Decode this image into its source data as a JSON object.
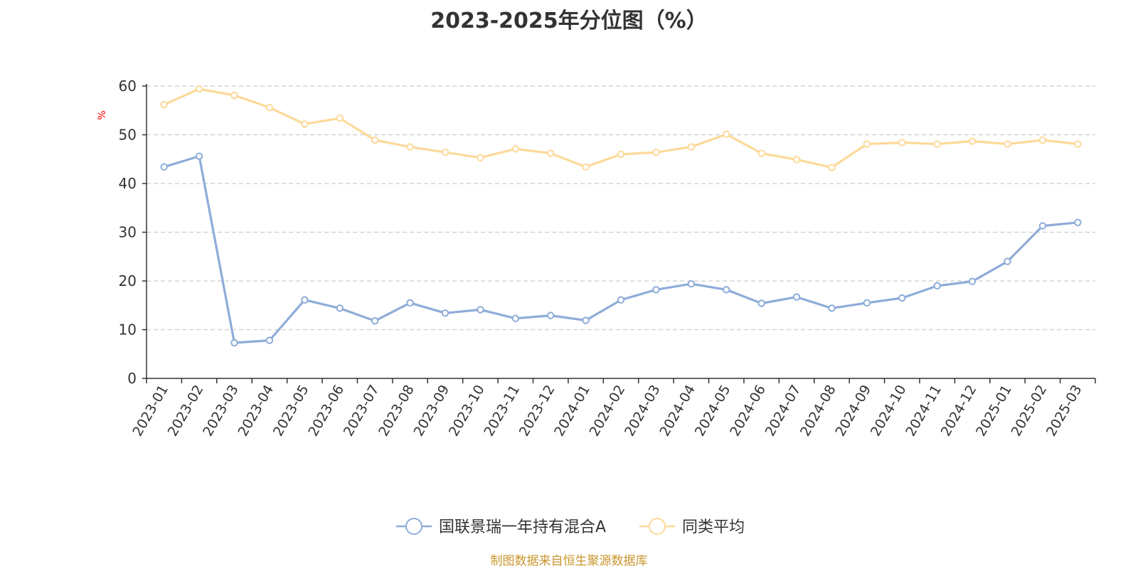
{
  "chart_data": {
    "type": "line",
    "title": "2023-2025年分位图（%）",
    "ylabel": "%",
    "ylim": [
      0,
      60
    ],
    "yticks": [
      0,
      10,
      20,
      30,
      40,
      50,
      60
    ],
    "grid": "horizontal dashed",
    "legend_position": "bottom",
    "categories": [
      "2023-01",
      "2023-02",
      "2023-03",
      "2023-04",
      "2023-05",
      "2023-06",
      "2023-07",
      "2023-08",
      "2023-09",
      "2023-10",
      "2023-11",
      "2023-12",
      "2024-01",
      "2024-02",
      "2024-03",
      "2024-04",
      "2024-05",
      "2024-06",
      "2024-07",
      "2024-08",
      "2024-09",
      "2024-10",
      "2024-11",
      "2024-12",
      "2025-01",
      "2025-02",
      "2025-03"
    ],
    "series": [
      {
        "name": "国联景瑞一年持有混合A",
        "color": "#8eacd9",
        "values": [
          43.4,
          45.6,
          7.3,
          7.8,
          16.1,
          14.4,
          11.8,
          15.5,
          13.4,
          14.1,
          12.3,
          12.9,
          11.9,
          16.1,
          18.2,
          19.4,
          18.2,
          15.4,
          16.7,
          14.4,
          15.5,
          16.5,
          19.0,
          19.9,
          24.0,
          31.3,
          32.0
        ]
      },
      {
        "name": "同类平均",
        "color": "#fdd99a",
        "values": [
          56.2,
          59.4,
          58.1,
          55.6,
          52.2,
          53.4,
          48.9,
          47.5,
          46.4,
          45.3,
          47.1,
          46.2,
          43.4,
          46.0,
          46.4,
          47.5,
          50.1,
          46.2,
          44.9,
          43.3,
          48.1,
          48.4,
          48.1,
          48.7,
          48.1,
          48.9,
          48.1
        ]
      }
    ]
  },
  "source_text": "制图数据来自恒生聚源数据库"
}
